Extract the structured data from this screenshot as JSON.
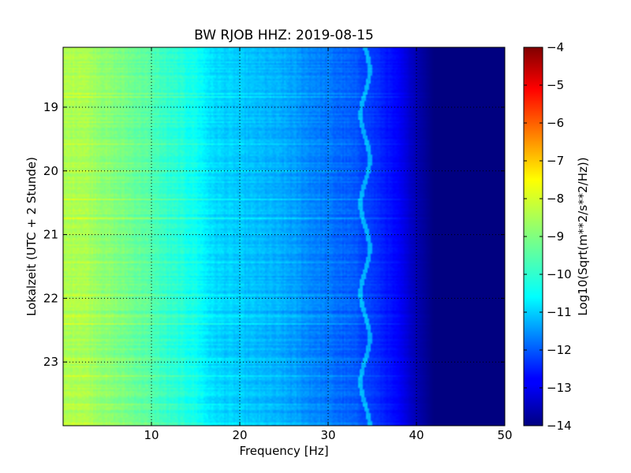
{
  "chart_data": {
    "type": "heatmap",
    "title": "BW RJOB HHZ: 2019-08-15",
    "xlabel": "Frequency [Hz]",
    "ylabel": "Lokalzeit (UTC + 2 Stunde)",
    "xlim": [
      0,
      50
    ],
    "ylim": [
      24,
      18.06
    ],
    "xticks": [
      10,
      20,
      30,
      40,
      50
    ],
    "yticks": [
      19,
      20,
      21,
      22,
      23
    ],
    "grid": true,
    "colormap": "jet",
    "colorbar": {
      "label": "Log10(Sqrt(m**2/s**2/Hz))",
      "range": [
        -14,
        -4
      ],
      "ticks": [
        -4,
        -5,
        -6,
        -7,
        -8,
        -9,
        -10,
        -11,
        -12,
        -13,
        -14
      ]
    },
    "profile": {
      "frequency_hz": [
        0,
        2,
        5,
        9,
        12,
        15,
        17,
        20,
        25,
        30,
        33,
        35,
        38,
        40,
        42,
        50
      ],
      "log_amplitude": [
        -8.6,
        -8.5,
        -8.9,
        -9.3,
        -9.8,
        -10.1,
        -10.6,
        -10.8,
        -11.1,
        -11.6,
        -11.9,
        -12.2,
        -12.8,
        -13.5,
        -14.0,
        -14.0
      ]
    },
    "narrowband_line": {
      "frequency_hz": 34.2
    }
  }
}
